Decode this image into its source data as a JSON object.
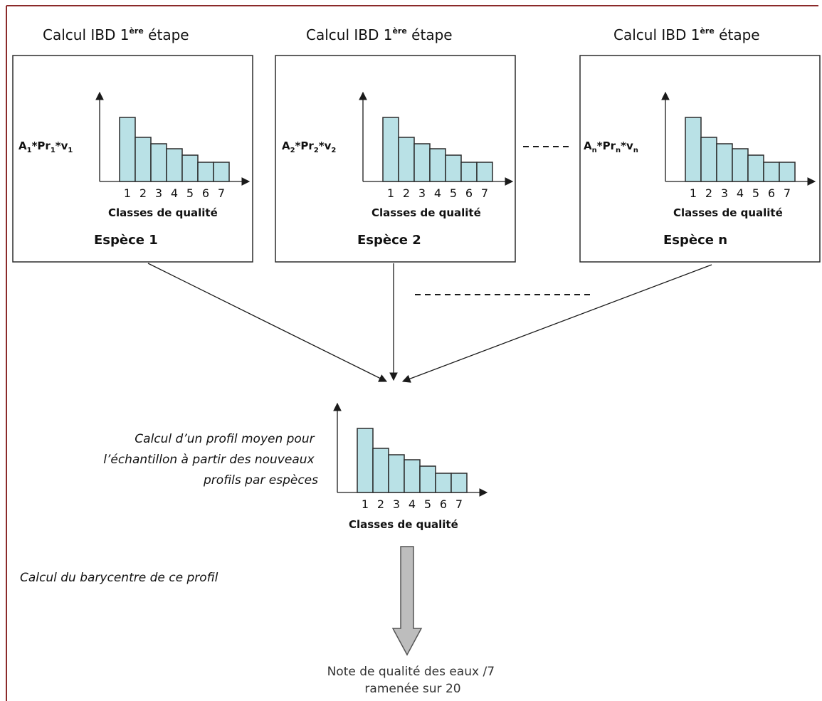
{
  "colors": {
    "frame": "#8b2a2a",
    "bar_fill": "#b9e1e6",
    "bar_stroke": "#2b2b2b",
    "arrow_fill": "#bdbdbd"
  },
  "columns": [
    {
      "title": "Calcul IBD 1",
      "title_sup": "ère",
      "title_end": " étape",
      "ylabel_parts": [
        "A",
        "1",
        "*Pr",
        "1",
        "*v",
        "1"
      ],
      "xlabel": "Classes de qualité",
      "species_label": "Espèce 1"
    },
    {
      "title": "Calcul IBD 1",
      "title_sup": "ère",
      "title_end": " étape",
      "ylabel_parts": [
        "A",
        "2",
        "*Pr",
        "2",
        "*v",
        "2"
      ],
      "xlabel": "Classes de qualité",
      "species_label": "Espèce 2"
    },
    {
      "title": "Calcul IBD 1",
      "title_sup": "ère",
      "title_end": " étape",
      "ylabel_parts": [
        "A",
        "n",
        "*Pr",
        "n",
        "*v",
        "n"
      ],
      "xlabel": "Classes de qualité",
      "species_label": "Espèce n"
    }
  ],
  "chart_data": [
    {
      "type": "bar",
      "categories": [
        "1",
        "2",
        "3",
        "4",
        "5",
        "6",
        "7"
      ],
      "values": [
        90,
        62,
        53,
        46,
        37,
        27,
        27
      ],
      "xlabel": "Classes de qualité"
    },
    {
      "type": "bar",
      "categories": [
        "1",
        "2",
        "3",
        "4",
        "5",
        "6",
        "7"
      ],
      "values": [
        90,
        62,
        53,
        46,
        37,
        27,
        27
      ],
      "xlabel": "Classes de qualité"
    },
    {
      "type": "bar",
      "categories": [
        "1",
        "2",
        "3",
        "4",
        "5",
        "6",
        "7"
      ],
      "values": [
        90,
        62,
        53,
        46,
        37,
        27,
        27
      ],
      "xlabel": "Classes de qualité"
    },
    {
      "type": "bar",
      "categories": [
        "1",
        "2",
        "3",
        "4",
        "5",
        "6",
        "7"
      ],
      "values": [
        90,
        62,
        53,
        46,
        37,
        27,
        27
      ],
      "xlabel": "Classes de qualité"
    }
  ],
  "middle": {
    "note_lines": [
      "Calcul d’un profil moyen pour",
      "l’échantillon à partir des nouveaux",
      "profils par espèces"
    ],
    "xlabel": "Classes de qualité"
  },
  "barycentre_note": "Calcul du barycentre de ce profil",
  "result_lines": [
    "Note de qualité des eaux /7",
    "ramenée sur 20"
  ]
}
